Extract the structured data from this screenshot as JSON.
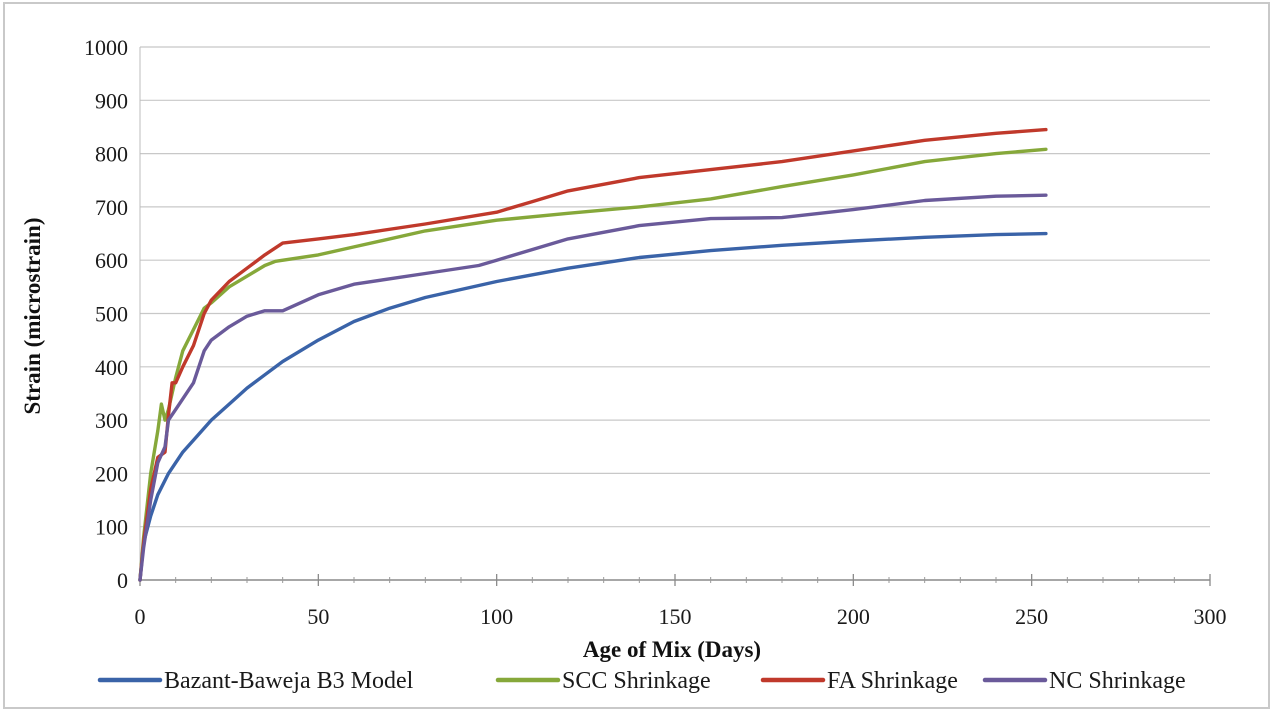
{
  "chart_data": {
    "type": "line",
    "title": "",
    "xlabel": "Age of Mix (Days)",
    "ylabel": "Strain (microstrain)",
    "xlim": [
      0,
      300
    ],
    "ylim": [
      0,
      1000
    ],
    "xticks": [
      "0",
      "50",
      "100",
      "150",
      "200",
      "250",
      "300"
    ],
    "yticks": [
      "0",
      "100",
      "200",
      "300",
      "400",
      "500",
      "600",
      "700",
      "800",
      "900",
      "1000"
    ],
    "grid": "horizontal",
    "legend_position": "bottom",
    "series": [
      {
        "name": "Bazant-Baweja B3 Model",
        "color": "#3a63a8",
        "x": [
          0,
          1,
          3,
          5,
          8,
          12,
          16,
          20,
          25,
          30,
          35,
          40,
          50,
          60,
          70,
          80,
          90,
          100,
          120,
          140,
          160,
          180,
          200,
          220,
          240,
          254
        ],
        "y": [
          0,
          70,
          120,
          160,
          200,
          240,
          270,
          300,
          330,
          360,
          385,
          410,
          450,
          485,
          510,
          530,
          545,
          560,
          585,
          605,
          618,
          628,
          636,
          643,
          648,
          650
        ]
      },
      {
        "name": "SCC Shrinkage",
        "color": "#86a83a",
        "x": [
          0,
          1,
          3,
          5,
          6,
          7,
          8,
          10,
          12,
          15,
          18,
          20,
          25,
          30,
          35,
          38,
          50,
          60,
          80,
          100,
          120,
          140,
          160,
          180,
          200,
          220,
          240,
          254
        ],
        "y": [
          0,
          80,
          200,
          280,
          330,
          300,
          320,
          380,
          430,
          470,
          510,
          520,
          550,
          570,
          590,
          598,
          610,
          625,
          655,
          675,
          688,
          700,
          715,
          738,
          760,
          785,
          800,
          808
        ]
      },
      {
        "name": "FA Shrinkage",
        "color": "#c0392b",
        "x": [
          0,
          1,
          3,
          5,
          7,
          8,
          9,
          10,
          12,
          15,
          18,
          20,
          25,
          30,
          35,
          40,
          50,
          60,
          80,
          100,
          110,
          120,
          140,
          160,
          180,
          200,
          220,
          240,
          254
        ],
        "y": [
          0,
          70,
          170,
          230,
          240,
          310,
          370,
          370,
          400,
          440,
          500,
          525,
          560,
          585,
          610,
          632,
          640,
          648,
          668,
          690,
          710,
          730,
          755,
          770,
          785,
          805,
          825,
          838,
          845
        ]
      },
      {
        "name": "NC Shrinkage",
        "color": "#6a5a9a",
        "x": [
          0,
          1,
          3,
          5,
          7,
          8,
          10,
          12,
          15,
          18,
          20,
          25,
          30,
          35,
          40,
          50,
          60,
          80,
          95,
          100,
          120,
          140,
          160,
          180,
          200,
          220,
          240,
          254
        ],
        "y": [
          0,
          60,
          150,
          220,
          250,
          300,
          320,
          340,
          370,
          430,
          450,
          475,
          495,
          505,
          505,
          535,
          555,
          575,
          590,
          600,
          640,
          665,
          678,
          680,
          695,
          712,
          720,
          722
        ]
      }
    ]
  }
}
